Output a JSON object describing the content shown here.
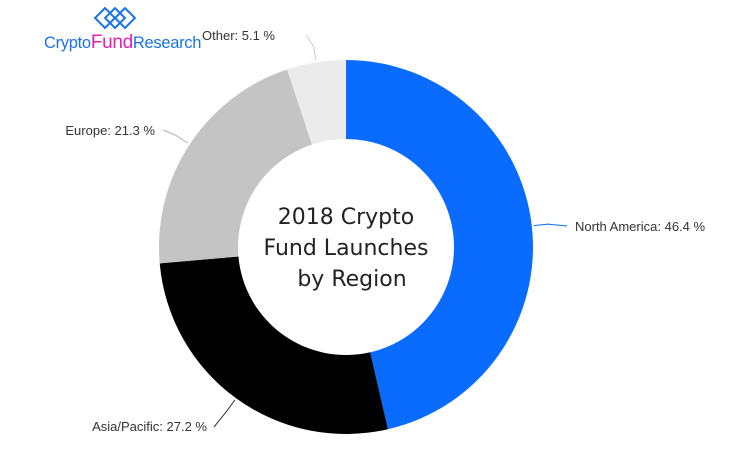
{
  "logo": {
    "part1": "Crypto",
    "part2": "Fund",
    "part3": "Research",
    "colors": {
      "part1": "#1a73e8",
      "part2": "#e620b4",
      "part3": "#1a73e8",
      "mark": "#1a73e8"
    },
    "icon": "linked-squares-logo-icon"
  },
  "chart_data": {
    "type": "donut",
    "title_lines": [
      "2018 Crypto",
      "Fund Launches",
      "by Region"
    ],
    "start_angle_deg": 0,
    "direction": "clockwise",
    "label_suffix": " %",
    "slices": [
      {
        "label": "North America",
        "value": 46.4,
        "color": "#0a6cff",
        "leader_color": "#0a6cff"
      },
      {
        "label": "Asia/Pacific",
        "value": 27.2,
        "color": "#000000",
        "leader_color": "#333333"
      },
      {
        "label": "Europe",
        "value": 21.3,
        "color": "#c4c4c4",
        "leader_color": "#b0b0b0"
      },
      {
        "label": "Other",
        "value": 5.1,
        "color": "#ebebeb",
        "leader_color": "#cccccc"
      }
    ]
  }
}
